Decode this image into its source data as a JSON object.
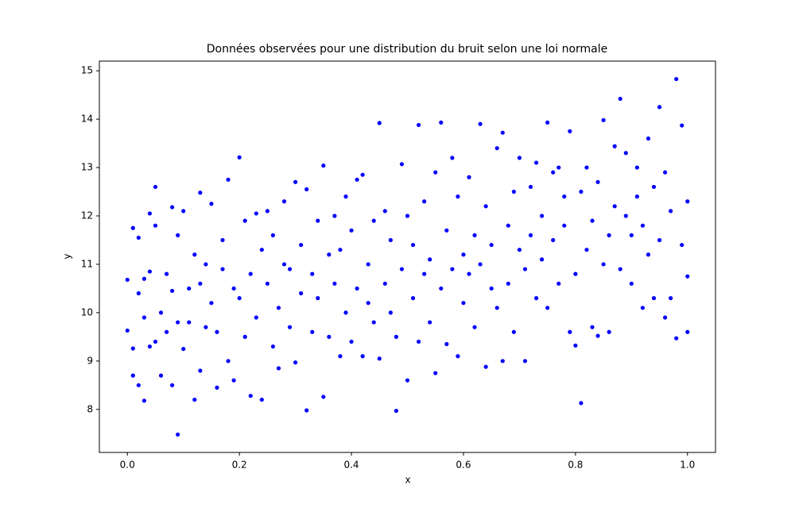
{
  "chart_data": {
    "type": "scatter",
    "title": "Données observées pour une distribution du bruit selon une loi normale",
    "x_label": "x",
    "y_label": "y",
    "xlim": [
      -0.05,
      1.05
    ],
    "ylim": [
      7.11,
      15.2
    ],
    "xticks": [
      {
        "value": 0,
        "label": "0.0"
      },
      0.2,
      0.4,
      0.6,
      0.8,
      {
        "value": 1,
        "label": "1.0"
      }
    ],
    "yticks": [
      8,
      9,
      10,
      11,
      12,
      13,
      14,
      15
    ],
    "color": "#0000ff",
    "grid": false,
    "x": [
      0.0,
      0.0,
      0.01,
      0.01,
      0.01,
      0.02,
      0.02,
      0.02,
      0.03,
      0.03,
      0.03,
      0.04,
      0.04,
      0.04,
      0.05,
      0.05,
      0.05,
      0.06,
      0.06,
      0.07,
      0.07,
      0.08,
      0.08,
      0.08,
      0.09,
      0.09,
      0.09,
      0.1,
      0.1,
      0.11,
      0.11,
      0.12,
      0.12,
      0.13,
      0.13,
      0.13,
      0.14,
      0.14,
      0.15,
      0.15,
      0.16,
      0.16,
      0.17,
      0.17,
      0.18,
      0.18,
      0.19,
      0.19,
      0.2,
      0.2,
      0.21,
      0.21,
      0.22,
      0.22,
      0.23,
      0.23,
      0.24,
      0.24,
      0.25,
      0.25,
      0.26,
      0.26,
      0.27,
      0.27,
      0.28,
      0.28,
      0.29,
      0.29,
      0.3,
      0.3,
      0.31,
      0.31,
      0.32,
      0.32,
      0.33,
      0.33,
      0.34,
      0.34,
      0.35,
      0.35,
      0.36,
      0.36,
      0.37,
      0.37,
      0.38,
      0.38,
      0.39,
      0.39,
      0.4,
      0.4,
      0.41,
      0.41,
      0.42,
      0.42,
      0.43,
      0.43,
      0.44,
      0.44,
      0.45,
      0.45,
      0.46,
      0.46,
      0.47,
      0.47,
      0.48,
      0.48,
      0.49,
      0.49,
      0.5,
      0.5,
      0.51,
      0.51,
      0.52,
      0.52,
      0.53,
      0.53,
      0.54,
      0.54,
      0.55,
      0.55,
      0.56,
      0.56,
      0.57,
      0.57,
      0.58,
      0.58,
      0.59,
      0.59,
      0.6,
      0.6,
      0.61,
      0.61,
      0.62,
      0.62,
      0.63,
      0.63,
      0.64,
      0.64,
      0.65,
      0.65,
      0.66,
      0.66,
      0.67,
      0.67,
      0.68,
      0.68,
      0.69,
      0.69,
      0.7,
      0.7,
      0.71,
      0.71,
      0.72,
      0.72,
      0.73,
      0.73,
      0.74,
      0.74,
      0.75,
      0.75,
      0.76,
      0.76,
      0.77,
      0.77,
      0.78,
      0.78,
      0.79,
      0.79,
      0.8,
      0.8,
      0.81,
      0.81,
      0.82,
      0.82,
      0.83,
      0.83,
      0.84,
      0.84,
      0.85,
      0.85,
      0.86,
      0.86,
      0.87,
      0.87,
      0.88,
      0.88,
      0.89,
      0.89,
      0.9,
      0.9,
      0.91,
      0.91,
      0.92,
      0.92,
      0.93,
      0.93,
      0.94,
      0.94,
      0.95,
      0.95,
      0.96,
      0.96,
      0.97,
      0.97,
      0.98,
      0.98,
      0.99,
      0.99,
      1.0,
      1.0,
      1.0
    ],
    "y": [
      10.68,
      9.63,
      11.75,
      8.7,
      9.26,
      10.4,
      11.55,
      8.5,
      9.9,
      10.7,
      8.18,
      12.05,
      9.3,
      10.85,
      12.6,
      9.4,
      11.8,
      8.7,
      10.0,
      9.6,
      10.8,
      12.18,
      8.5,
      10.45,
      7.48,
      11.6,
      9.8,
      12.1,
      9.25,
      10.5,
      9.8,
      8.2,
      11.2,
      12.48,
      10.6,
      8.8,
      9.7,
      11.0,
      12.25,
      10.2,
      8.45,
      9.6,
      10.9,
      11.5,
      12.75,
      9.0,
      10.5,
      8.6,
      13.21,
      10.3,
      11.9,
      9.5,
      10.8,
      8.28,
      12.05,
      9.9,
      11.3,
      8.2,
      10.6,
      12.1,
      9.3,
      11.6,
      10.1,
      8.85,
      11.0,
      12.3,
      9.7,
      10.9,
      12.7,
      8.97,
      10.4,
      11.4,
      7.98,
      12.55,
      9.6,
      10.8,
      11.9,
      10.3,
      13.04,
      8.26,
      11.2,
      9.5,
      10.6,
      12.0,
      9.1,
      11.3,
      10.0,
      12.4,
      9.4,
      11.7,
      12.75,
      10.5,
      12.85,
      9.1,
      11.0,
      10.2,
      9.8,
      11.9,
      13.92,
      9.05,
      10.6,
      12.1,
      10.0,
      11.5,
      7.97,
      9.5,
      13.07,
      10.9,
      8.6,
      12.0,
      10.3,
      11.4,
      13.88,
      9.4,
      10.8,
      12.3,
      11.1,
      9.8,
      12.9,
      8.75,
      13.93,
      10.5,
      11.7,
      9.35,
      13.2,
      10.9,
      12.4,
      9.1,
      11.2,
      10.2,
      12.8,
      10.8,
      9.7,
      11.6,
      13.9,
      11.0,
      8.88,
      12.2,
      10.5,
      11.4,
      13.4,
      10.1,
      13.72,
      9.0,
      11.8,
      10.6,
      12.5,
      9.6,
      11.3,
      13.2,
      9.0,
      10.9,
      12.6,
      11.6,
      10.3,
      13.1,
      11.1,
      12.0,
      13.93,
      10.1,
      11.5,
      12.9,
      10.6,
      13.0,
      11.8,
      12.4,
      13.75,
      9.6,
      10.8,
      9.32,
      8.13,
      12.5,
      11.3,
      13.0,
      9.7,
      11.9,
      9.52,
      12.7,
      13.98,
      11.0,
      11.6,
      9.6,
      13.44,
      12.2,
      14.42,
      10.9,
      12.0,
      13.3,
      10.6,
      11.6,
      13.0,
      12.4,
      10.1,
      11.8,
      13.6,
      11.2,
      12.6,
      10.3,
      14.25,
      11.5,
      9.9,
      12.9,
      10.3,
      12.1,
      14.83,
      9.47,
      13.87,
      11.4,
      9.6,
      10.75,
      12.3
    ]
  }
}
